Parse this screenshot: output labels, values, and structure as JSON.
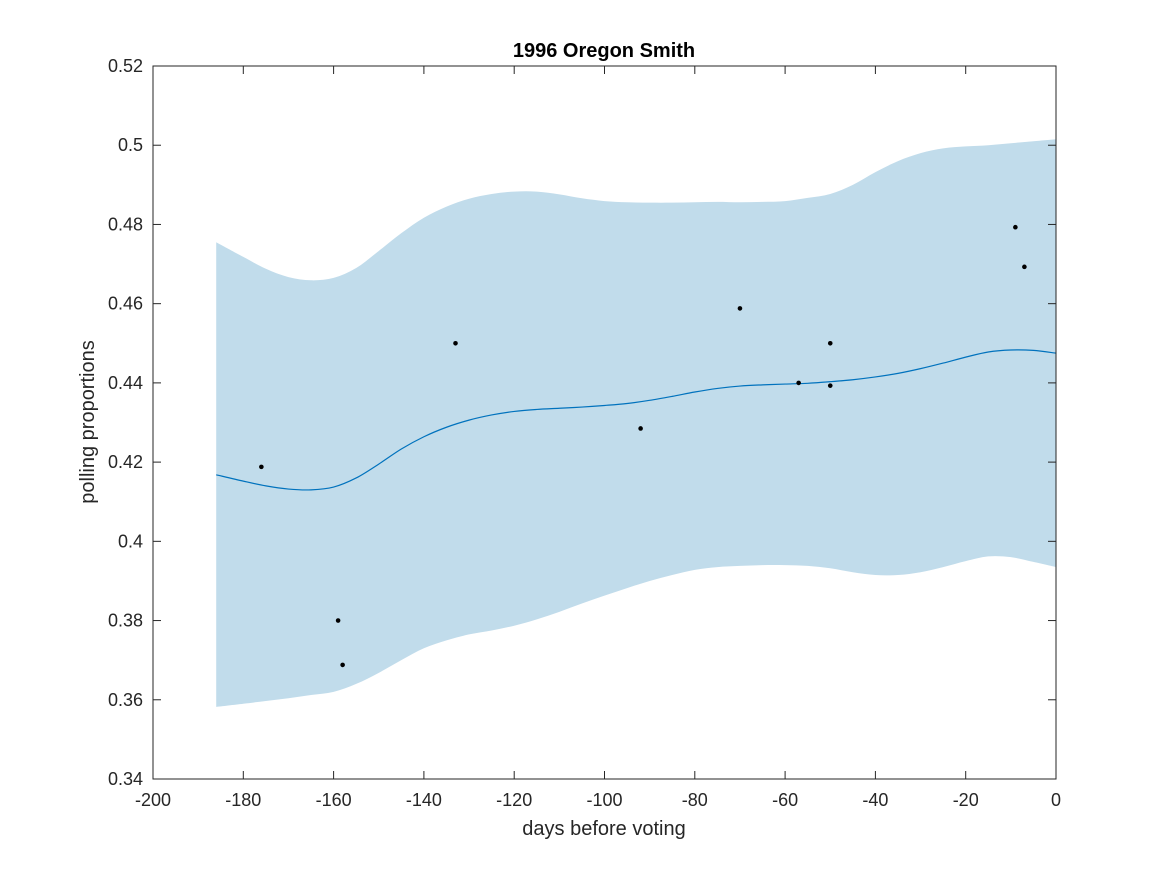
{
  "colors": {
    "band": "#c1dceb",
    "line": "#0072bd",
    "points": "#000000",
    "axes": "#262626"
  },
  "chart_data": {
    "type": "line",
    "title": "1996 Oregon Smith",
    "xlabel": "days before voting",
    "ylabel": "polling proportions",
    "xlim": [
      -200,
      0
    ],
    "ylim": [
      0.34,
      0.52
    ],
    "x_ticks": [
      "-200",
      "-180",
      "-160",
      "-140",
      "-120",
      "-100",
      "-80",
      "-60",
      "-40",
      "-20",
      "0"
    ],
    "y_ticks": [
      "0.34",
      "0.36",
      "0.38",
      "0.4",
      "0.42",
      "0.44",
      "0.46",
      "0.48",
      "0.5",
      "0.52"
    ],
    "grid": false,
    "legend": "none",
    "series": [
      {
        "kind": "confidence-band",
        "x": [
          -186,
          -180,
          -175,
          -170,
          -165,
          -160,
          -155,
          -150,
          -145,
          -140,
          -135,
          -130,
          -125,
          -120,
          -115,
          -110,
          -105,
          -100,
          -95,
          -90,
          -85,
          -80,
          -75,
          -70,
          -65,
          -60,
          -55,
          -50,
          -45,
          -40,
          -35,
          -30,
          -25,
          -20,
          -15,
          -10,
          -5,
          0
        ],
        "upper": [
          0.4755,
          0.4718,
          0.4688,
          0.4667,
          0.4659,
          0.4665,
          0.469,
          0.4733,
          0.4778,
          0.4817,
          0.4845,
          0.4865,
          0.4877,
          0.4883,
          0.4883,
          0.4876,
          0.4866,
          0.4859,
          0.4856,
          0.4855,
          0.4855,
          0.4856,
          0.4857,
          0.4856,
          0.4857,
          0.4859,
          0.4867,
          0.4877,
          0.49,
          0.4932,
          0.496,
          0.498,
          0.4992,
          0.4997,
          0.5,
          0.5005,
          0.501,
          0.5015
        ],
        "lower": [
          0.3582,
          0.359,
          0.3597,
          0.3604,
          0.3612,
          0.362,
          0.364,
          0.3668,
          0.37,
          0.373,
          0.375,
          0.3765,
          0.3775,
          0.3787,
          0.3803,
          0.3822,
          0.3843,
          0.3863,
          0.3882,
          0.39,
          0.3915,
          0.3928,
          0.3935,
          0.3938,
          0.394,
          0.394,
          0.3938,
          0.3932,
          0.3922,
          0.3915,
          0.3915,
          0.3922,
          0.3935,
          0.395,
          0.3962,
          0.396,
          0.3948,
          0.3935
        ]
      },
      {
        "kind": "mean-line",
        "x": [
          -186,
          -180,
          -175,
          -170,
          -165,
          -160,
          -155,
          -150,
          -145,
          -140,
          -135,
          -130,
          -125,
          -120,
          -115,
          -110,
          -105,
          -100,
          -95,
          -90,
          -85,
          -80,
          -75,
          -70,
          -65,
          -60,
          -55,
          -50,
          -45,
          -40,
          -35,
          -30,
          -25,
          -20,
          -15,
          -10,
          -5,
          0
        ],
        "y": [
          0.4168,
          0.4152,
          0.414,
          0.4132,
          0.413,
          0.4137,
          0.416,
          0.4195,
          0.4233,
          0.4264,
          0.4288,
          0.4306,
          0.4319,
          0.4328,
          0.4333,
          0.4336,
          0.4339,
          0.4343,
          0.4348,
          0.4356,
          0.4366,
          0.4377,
          0.4386,
          0.4392,
          0.4395,
          0.4397,
          0.4399,
          0.4403,
          0.4408,
          0.4415,
          0.4424,
          0.4436,
          0.445,
          0.4465,
          0.4478,
          0.4483,
          0.4482,
          0.4475
        ]
      },
      {
        "kind": "polls",
        "x": [
          -176,
          -159,
          -158,
          -133,
          -92,
          -70,
          -57,
          -50,
          -50,
          -9,
          -7
        ],
        "y": [
          0.4188,
          0.38,
          0.3688,
          0.45,
          0.4285,
          0.4588,
          0.44,
          0.45,
          0.4393,
          0.4793,
          0.4693
        ]
      }
    ]
  }
}
